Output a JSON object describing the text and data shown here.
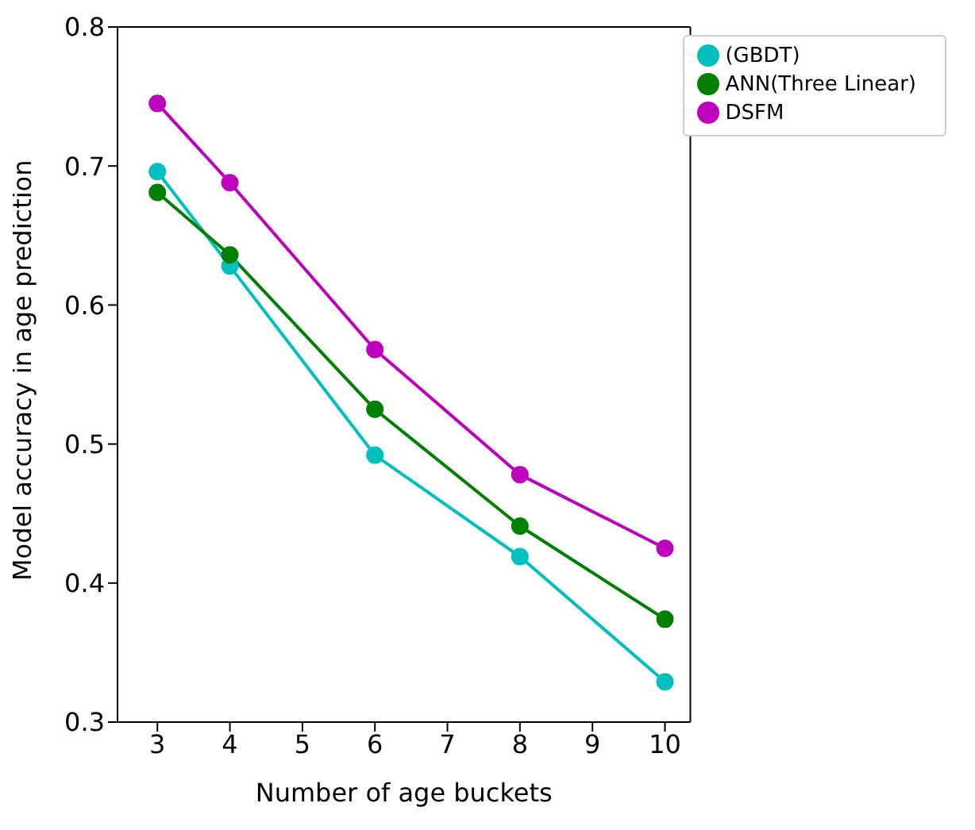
{
  "chart_data": {
    "type": "line",
    "xlabel": "Number of age buckets",
    "ylabel": "Model accuracy in age prediction",
    "x": [
      3,
      4,
      6,
      8,
      10
    ],
    "series": [
      {
        "name": "(GBDT)",
        "color": "#00bfbf",
        "values": [
          0.696,
          0.628,
          0.492,
          0.419,
          0.329
        ]
      },
      {
        "name": "ANN(Three Linear)",
        "color": "#008000",
        "values": [
          0.681,
          0.636,
          0.525,
          0.441,
          0.374
        ]
      },
      {
        "name": "DSFM",
        "color": "#bf00bf",
        "values": [
          0.745,
          0.688,
          0.568,
          0.478,
          0.425
        ]
      }
    ],
    "xlim": [
      2.45,
      10.35
    ],
    "xticks": [
      3,
      4,
      5,
      6,
      7,
      8,
      9,
      10
    ],
    "ylim": [
      0.3,
      0.8
    ],
    "yticks": [
      0.3,
      0.4,
      0.5,
      0.6,
      0.7,
      0.8
    ],
    "legend": "top right",
    "marker": "circle",
    "line_style": "solid"
  }
}
